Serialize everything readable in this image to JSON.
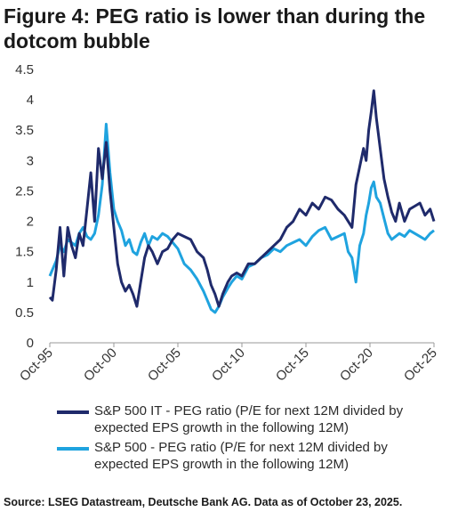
{
  "title": "Figure 4: PEG ratio is lower than during the dotcom bubble",
  "source": "Source: LSEG Datastream, Deutsche Bank AG. Data as of October 23, 2025.",
  "chart_data": {
    "type": "line",
    "title": "Figure 4: PEG ratio is lower than during the dotcom bubble",
    "xlabel": "",
    "ylabel": "",
    "xlim": [
      1995.8,
      2025.8
    ],
    "ylim": [
      0,
      4.5
    ],
    "yticks": [
      0,
      0.5,
      1,
      1.5,
      2,
      2.5,
      3,
      3.5,
      4,
      4.5
    ],
    "ytick_labels": [
      "0",
      "0.5",
      "1",
      "1.5",
      "2",
      "2.5",
      "3",
      "3.5",
      "4",
      "4.5"
    ],
    "xticks": [
      1995.8,
      2000.8,
      2005.8,
      2010.8,
      2015.8,
      2020.8,
      2025.8
    ],
    "xtick_labels": [
      "Oct-95",
      "Oct-00",
      "Oct-05",
      "Oct-10",
      "Oct-15",
      "Oct-20",
      "Oct-25"
    ],
    "grid": false,
    "legend_position": "bottom",
    "series": [
      {
        "name": "S&P 500 IT - PEG ratio (P/E for next 12M divided by expected EPS growth in the following 12M)",
        "color": "#1f2a6b",
        "x": [
          1995.8,
          1996.0,
          1996.3,
          1996.6,
          1996.9,
          1997.2,
          1997.5,
          1997.8,
          1998.1,
          1998.4,
          1998.7,
          1999.0,
          1999.3,
          1999.6,
          1999.9,
          2000.2,
          2000.5,
          2000.8,
          2001.1,
          2001.4,
          2001.7,
          2002.0,
          2002.3,
          2002.6,
          2002.9,
          2003.2,
          2003.5,
          2003.8,
          2004.2,
          2004.6,
          2005.0,
          2005.4,
          2005.8,
          2006.3,
          2006.8,
          2007.3,
          2007.8,
          2008.1,
          2008.4,
          2008.7,
          2009.0,
          2009.3,
          2009.7,
          2010.0,
          2010.4,
          2010.8,
          2011.3,
          2011.8,
          2012.3,
          2012.8,
          2013.3,
          2013.8,
          2014.3,
          2014.8,
          2015.3,
          2015.8,
          2016.3,
          2016.8,
          2017.3,
          2017.8,
          2018.3,
          2018.8,
          2019.1,
          2019.4,
          2019.7,
          2020.0,
          2020.3,
          2020.5,
          2020.7,
          2020.9,
          2021.1,
          2021.3,
          2021.6,
          2021.9,
          2022.2,
          2022.5,
          2022.8,
          2023.1,
          2023.5,
          2023.9,
          2024.3,
          2024.7,
          2025.1,
          2025.5,
          2025.8
        ],
        "values": [
          0.75,
          0.7,
          1.2,
          1.9,
          1.1,
          1.9,
          1.6,
          1.4,
          1.8,
          1.6,
          2.2,
          2.8,
          2.0,
          3.2,
          2.7,
          3.3,
          2.5,
          1.9,
          1.3,
          1.0,
          0.85,
          0.95,
          0.8,
          0.6,
          1.0,
          1.4,
          1.6,
          1.5,
          1.3,
          1.5,
          1.55,
          1.7,
          1.8,
          1.75,
          1.7,
          1.5,
          1.4,
          1.2,
          0.95,
          0.8,
          0.6,
          0.8,
          1.0,
          1.1,
          1.15,
          1.1,
          1.3,
          1.3,
          1.4,
          1.5,
          1.6,
          1.7,
          1.9,
          2.0,
          2.2,
          2.1,
          2.3,
          2.2,
          2.4,
          2.35,
          2.2,
          2.1,
          2.0,
          1.9,
          2.6,
          2.9,
          3.2,
          3.0,
          3.5,
          3.8,
          4.15,
          3.7,
          3.2,
          2.7,
          2.4,
          2.15,
          2.0,
          2.3,
          2.0,
          2.2,
          2.25,
          2.3,
          2.1,
          2.2,
          2.0
        ]
      },
      {
        "name": "S&P 500 - PEG ratio (P/E for next 12M divided by expected EPS growth in the following 12M)",
        "color": "#1fa3df",
        "x": [
          1995.8,
          1996.0,
          1996.3,
          1996.6,
          1996.9,
          1997.2,
          1997.5,
          1997.8,
          1998.1,
          1998.4,
          1998.7,
          1999.0,
          1999.3,
          1999.6,
          1999.9,
          2000.2,
          2000.5,
          2000.8,
          2001.1,
          2001.4,
          2001.7,
          2002.0,
          2002.3,
          2002.6,
          2002.9,
          2003.2,
          2003.5,
          2003.8,
          2004.2,
          2004.6,
          2005.0,
          2005.4,
          2005.8,
          2006.3,
          2006.8,
          2007.3,
          2007.8,
          2008.1,
          2008.4,
          2008.7,
          2009.0,
          2009.3,
          2009.7,
          2010.0,
          2010.4,
          2010.8,
          2011.3,
          2011.8,
          2012.3,
          2012.8,
          2013.3,
          2013.8,
          2014.3,
          2014.8,
          2015.3,
          2015.8,
          2016.3,
          2016.8,
          2017.3,
          2017.8,
          2018.3,
          2018.8,
          2019.1,
          2019.4,
          2019.7,
          2020.0,
          2020.3,
          2020.5,
          2020.7,
          2020.9,
          2021.1,
          2021.3,
          2021.6,
          2021.9,
          2022.2,
          2022.5,
          2022.8,
          2023.1,
          2023.5,
          2023.9,
          2024.3,
          2024.7,
          2025.1,
          2025.5,
          2025.8
        ],
        "values": [
          1.1,
          1.2,
          1.35,
          1.6,
          1.5,
          1.7,
          1.65,
          1.6,
          1.8,
          1.9,
          1.75,
          1.7,
          1.8,
          2.1,
          2.6,
          3.6,
          2.8,
          2.2,
          2.0,
          1.85,
          1.6,
          1.7,
          1.5,
          1.45,
          1.65,
          1.8,
          1.6,
          1.75,
          1.7,
          1.8,
          1.75,
          1.65,
          1.55,
          1.3,
          1.2,
          1.05,
          0.85,
          0.7,
          0.55,
          0.5,
          0.6,
          0.75,
          0.9,
          1.0,
          1.1,
          1.05,
          1.25,
          1.3,
          1.4,
          1.45,
          1.55,
          1.5,
          1.6,
          1.65,
          1.7,
          1.6,
          1.75,
          1.85,
          1.9,
          1.7,
          1.75,
          1.8,
          1.5,
          1.4,
          1.0,
          1.6,
          1.8,
          2.1,
          2.3,
          2.55,
          2.65,
          2.4,
          2.3,
          2.05,
          1.8,
          1.7,
          1.75,
          1.8,
          1.75,
          1.85,
          1.8,
          1.75,
          1.7,
          1.8,
          1.85
        ]
      }
    ]
  }
}
